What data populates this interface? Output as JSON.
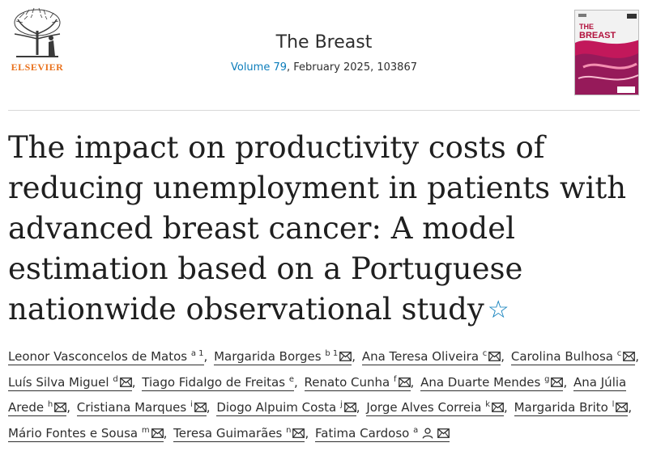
{
  "header": {
    "publisher": "ELSEVIER",
    "journal_title": "The Breast",
    "volume_link": "Volume 79",
    "issue_info": ", February 2025, 103867",
    "cover_title_line1": "THE",
    "cover_title_line2": "BREAST"
  },
  "article": {
    "title": "The impact on productivity costs of reducing unemployment in patients with advanced breast cancer: A model estimation based on a Portuguese nationwide observational study"
  },
  "authors": [
    {
      "name": "Leonor Vasconcelos de Matos",
      "aff": "a 1",
      "email": false
    },
    {
      "name": "Margarida Borges",
      "aff": "b 1",
      "email": true
    },
    {
      "name": "Ana Teresa Oliveira",
      "aff": "c",
      "email": true
    },
    {
      "name": "Carolina Bulhosa",
      "aff": "c",
      "email": true
    },
    {
      "name": "Luís Silva Miguel",
      "aff": "d",
      "email": true
    },
    {
      "name": "Tiago Fidalgo de Freitas",
      "aff": "e",
      "email": false
    },
    {
      "name": "Renato Cunha",
      "aff": "f",
      "email": true
    },
    {
      "name": "Ana Duarte Mendes",
      "aff": "g",
      "email": true
    },
    {
      "name": "Ana Júlia Arede",
      "aff": "h",
      "email": true
    },
    {
      "name": "Cristiana Marques",
      "aff": "i",
      "email": true
    },
    {
      "name": "Diogo Alpuim Costa",
      "aff": "j",
      "email": true
    },
    {
      "name": "Jorge Alves Correia",
      "aff": "k",
      "email": true
    },
    {
      "name": "Margarida Brito",
      "aff": "l",
      "email": true
    },
    {
      "name": "Mário Fontes e Sousa",
      "aff": "m",
      "email": true
    },
    {
      "name": "Teresa Guimarães",
      "aff": "n",
      "email": true
    },
    {
      "name": "Fatima Cardoso",
      "aff": "a",
      "email": true,
      "corresponding": true
    }
  ],
  "icons": {
    "star": "star-outline-icon",
    "mail": "envelope-icon",
    "person": "person-icon",
    "accent": "#0c7dbb",
    "publisher_color": "#e9711c"
  }
}
